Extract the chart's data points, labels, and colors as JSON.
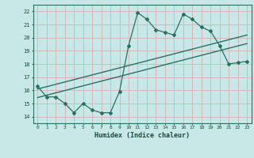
{
  "title": "",
  "xlabel": "Humidex (Indice chaleur)",
  "ylabel": "",
  "background_color": "#c8e8e8",
  "grid_color": "#d4b8b8",
  "line_color": "#2a7060",
  "x_data": [
    0,
    1,
    2,
    3,
    4,
    5,
    6,
    7,
    8,
    9,
    10,
    11,
    12,
    13,
    14,
    15,
    16,
    17,
    18,
    19,
    20,
    21,
    22,
    23
  ],
  "y_main": [
    16.3,
    15.5,
    15.5,
    15.0,
    14.3,
    15.0,
    14.5,
    14.3,
    14.3,
    15.9,
    19.4,
    21.9,
    21.4,
    20.6,
    20.4,
    20.2,
    21.8,
    21.4,
    20.8,
    20.5,
    19.4,
    18.0,
    18.1,
    18.2
  ],
  "ylim": [
    13.5,
    22.5
  ],
  "xlim": [
    -0.5,
    23.5
  ],
  "yticks": [
    14,
    15,
    16,
    17,
    18,
    19,
    20,
    21,
    22
  ],
  "xticks": [
    0,
    1,
    2,
    3,
    4,
    5,
    6,
    7,
    8,
    9,
    10,
    11,
    12,
    13,
    14,
    15,
    16,
    17,
    18,
    19,
    20,
    21,
    22,
    23
  ],
  "reg_x_start": 0,
  "reg_x_end": 23,
  "reg_y1_start": 15.45,
  "reg_y1_end": 19.55,
  "reg_y2_start": 16.1,
  "reg_y2_end": 20.2
}
